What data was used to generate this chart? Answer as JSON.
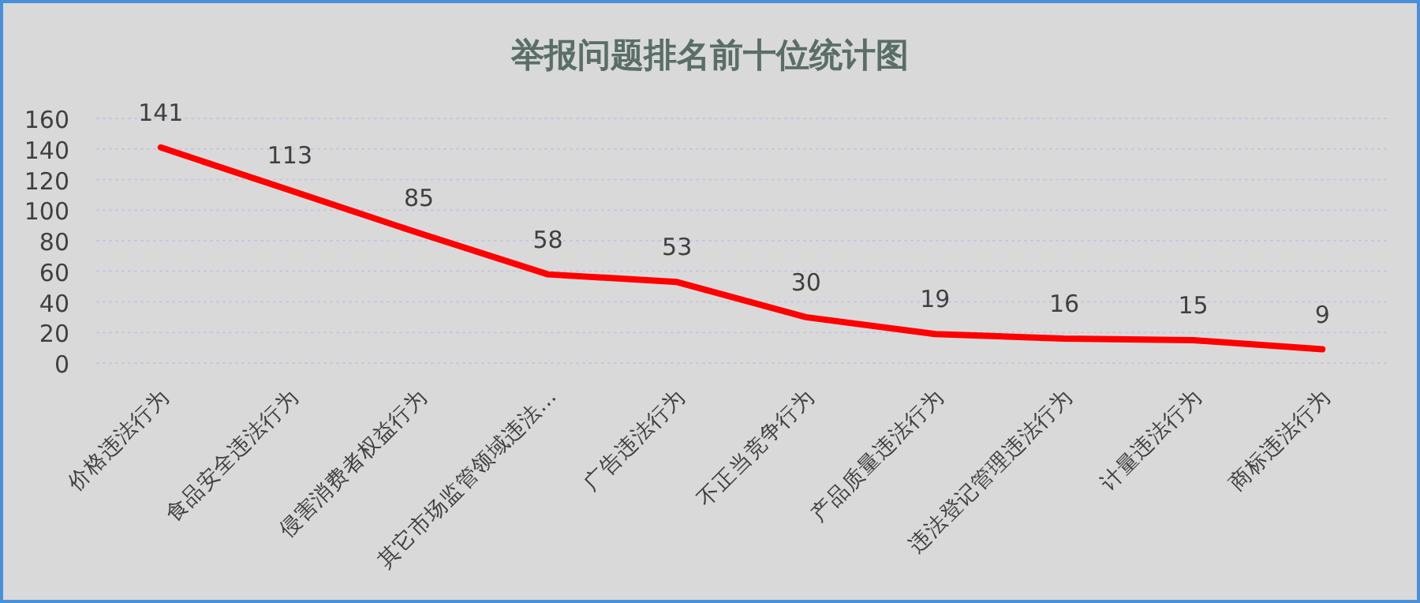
{
  "chart_data": {
    "type": "line",
    "title": "举报问题排名前十位统计图",
    "categories": [
      "价格违法行为",
      "食品安全违法行为",
      "侵害消费者权益行为",
      "其它市场监管领域违法…",
      "广告违法行为",
      "不正当竞争行为",
      "产品质量违法行为",
      "违法登记管理违法行为",
      "计量违法行为",
      "商标违法行为"
    ],
    "series": [
      {
        "color": "#ff0000",
        "values": [
          141,
          113,
          85,
          58,
          53,
          30,
          19,
          16,
          15,
          9
        ]
      }
    ],
    "ylim": [
      0,
      160
    ],
    "yticks": [
      0,
      20,
      40,
      60,
      80,
      100,
      120,
      140,
      160
    ],
    "data_labels": true,
    "grid": "y",
    "line_style": "solid"
  }
}
